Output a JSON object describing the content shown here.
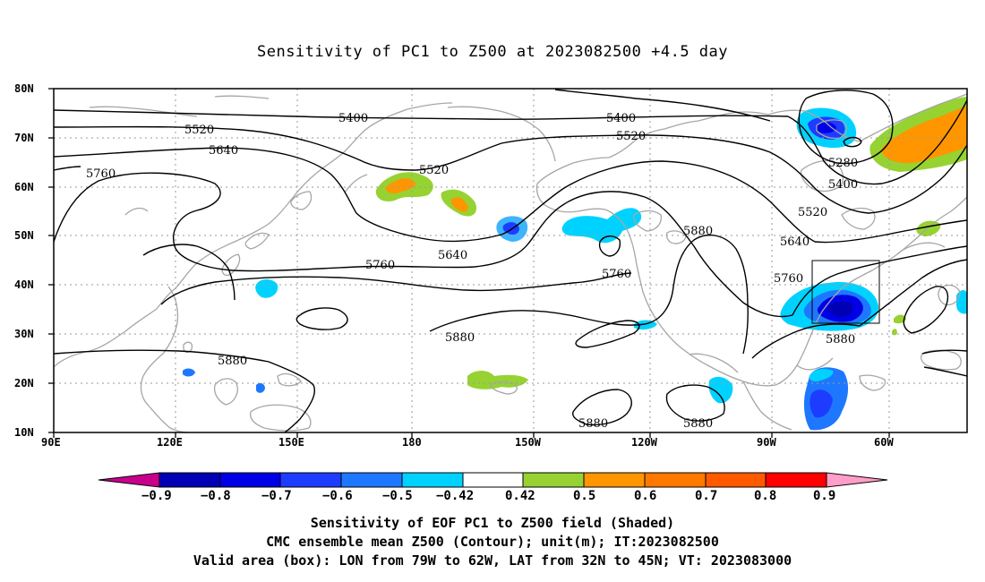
{
  "title": "Sensitivity of PC1 to Z500 at 2023082500 +4.5 day",
  "map": {
    "lat_labels": [
      "80N",
      "70N",
      "60N",
      "50N",
      "40N",
      "30N",
      "20N",
      "10N"
    ],
    "lon_labels": [
      "90E",
      "120E",
      "150E",
      "180",
      "150W",
      "120W",
      "90W",
      "60W"
    ],
    "contour_labels": [
      "5400",
      "5520",
      "5640",
      "5760",
      "5400",
      "5520",
      "5280",
      "5400",
      "5520",
      "5640",
      "5760",
      "5880",
      "5880",
      "5880",
      "5880",
      "5880",
      "5880",
      "5760",
      "5640",
      "5520",
      "5760"
    ],
    "valid_box": {
      "lon_from": "79W",
      "lon_to": "62W",
      "lat_from": "32N",
      "lat_to": "45N"
    },
    "colors": {
      "coast": "#a6a6a6",
      "contour": "#000000",
      "grid": "#9a9a9a"
    }
  },
  "colorbar": {
    "labels": [
      "−0.9",
      "−0.8",
      "−0.7",
      "−0.6",
      "−0.5",
      "−0.42",
      "0.42",
      "0.5",
      "0.6",
      "0.7",
      "0.8",
      "0.9"
    ],
    "colors": [
      "#c8008c",
      "#0000b4",
      "#0000e6",
      "#1e3cff",
      "#1e78ff",
      "#3cb4ff",
      "#00d2ff",
      "#ffffff",
      "#96d232",
      "#ff9600",
      "#ff7800",
      "#ff5a00",
      "#ff2800",
      "#ff0000",
      "#ff9ec8"
    ]
  },
  "captions": {
    "line1": "Sensitivity of EOF PC1 to Z500 field (Shaded)",
    "line2": "CMC ensemble mean Z500 (Contour); unit(m); IT:2023082500",
    "line3": "Valid area (box): LON from 79W to 62W, LAT from 32N to 45N; VT: 2023083000"
  }
}
